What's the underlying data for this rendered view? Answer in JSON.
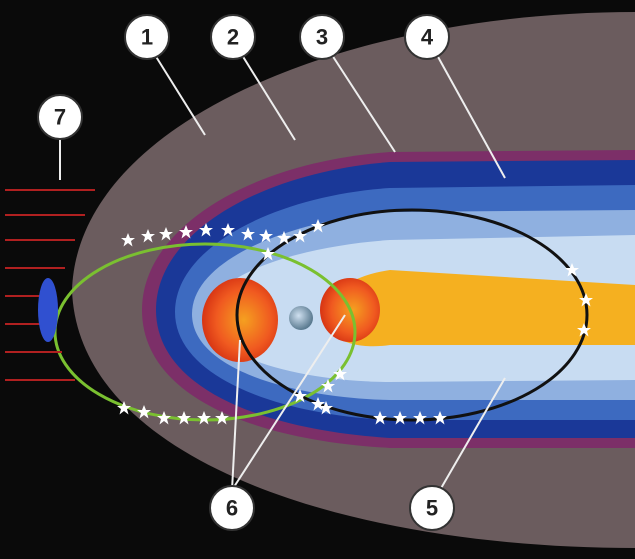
{
  "labels": [
    {
      "text": "1"
    },
    {
      "text": "2"
    },
    {
      "text": "3"
    },
    {
      "text": "4"
    },
    {
      "text": "5"
    },
    {
      "text": "6"
    },
    {
      "text": "7"
    }
  ]
}
